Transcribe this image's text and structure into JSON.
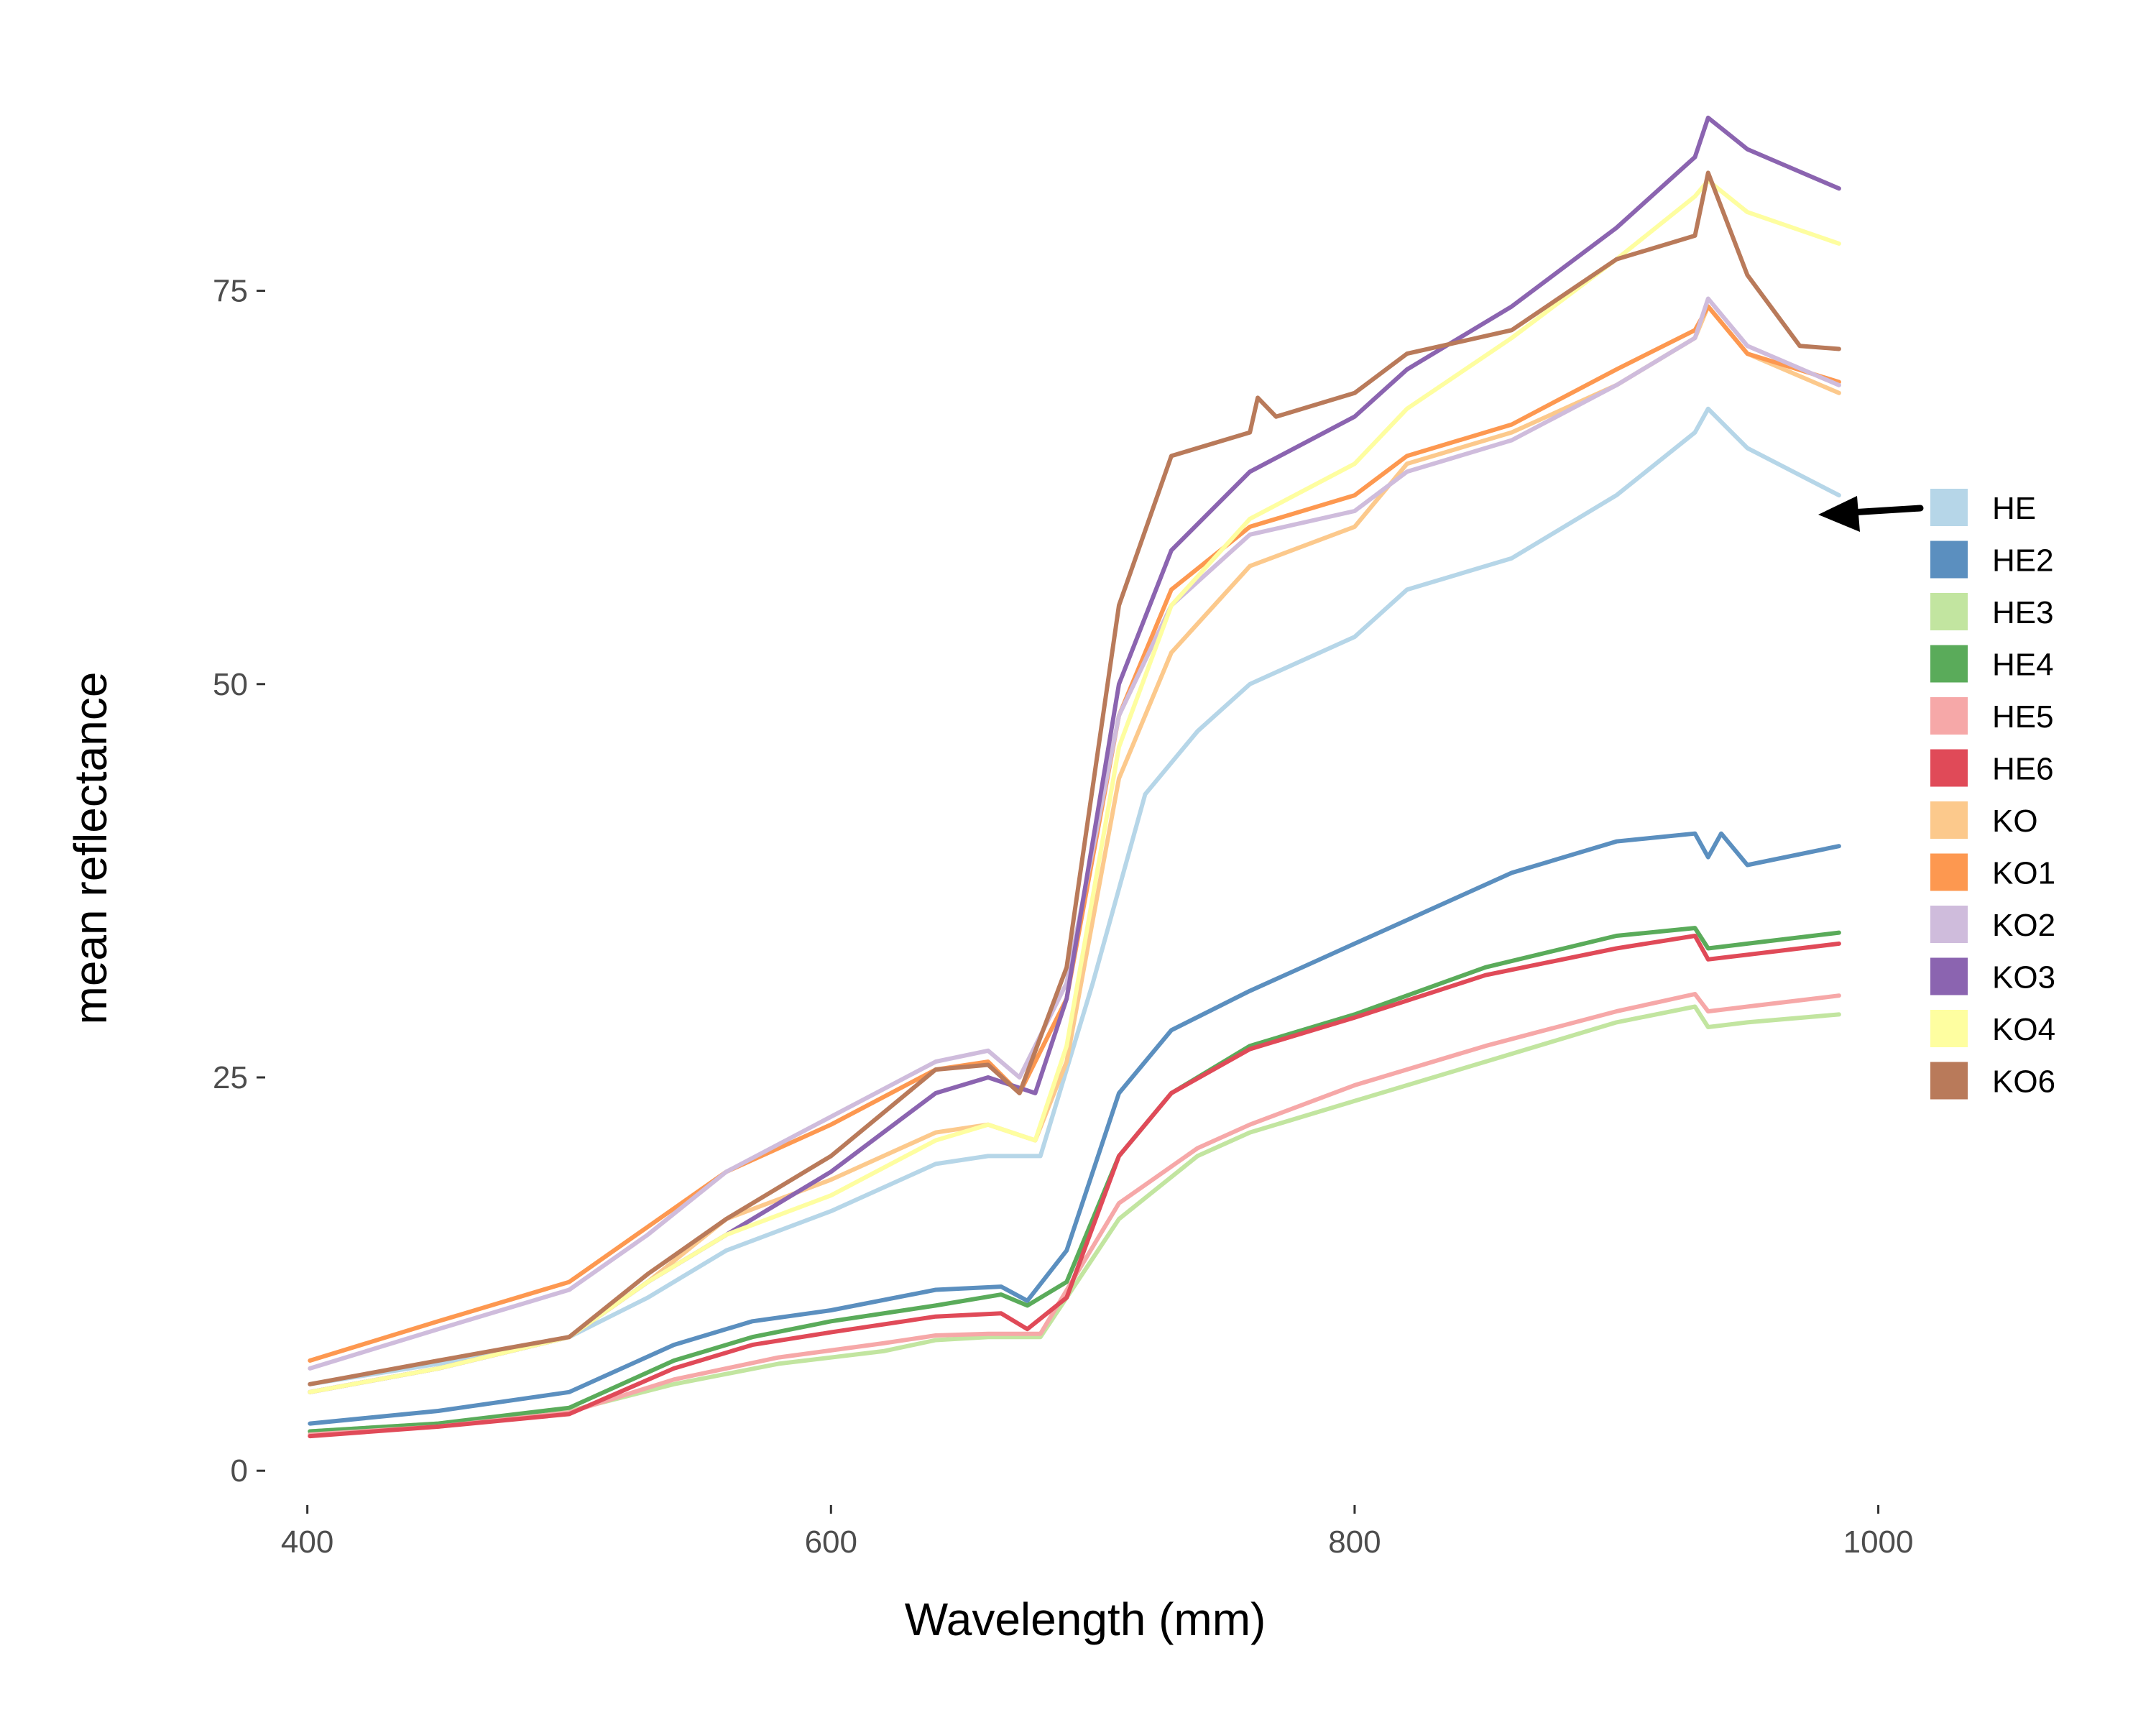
{
  "chart_data": {
    "type": "line",
    "title": "",
    "xlabel": "Wavelength (mm)",
    "ylabel": "mean reflectance",
    "xlim": [
      385,
      1010
    ],
    "ylim": [
      -2,
      88
    ],
    "xticks": [
      400,
      600,
      800,
      1000
    ],
    "yticks": [
      0,
      25,
      50,
      75
    ],
    "grid": false,
    "legend_position": "right",
    "annotation": {
      "type": "arrow",
      "points_to_series": "HE",
      "at": [
        985,
        62
      ]
    },
    "series": [
      {
        "name": "HE",
        "color": "#b6d6e8",
        "points": [
          [
            401,
            5.5
          ],
          [
            450,
            6.8
          ],
          [
            500,
            8.5
          ],
          [
            530,
            11
          ],
          [
            560,
            14
          ],
          [
            600,
            16.5
          ],
          [
            640,
            19.5
          ],
          [
            660,
            20
          ],
          [
            680,
            20
          ],
          [
            700,
            31
          ],
          [
            720,
            43
          ],
          [
            740,
            47
          ],
          [
            760,
            50
          ],
          [
            800,
            53
          ],
          [
            820,
            56
          ],
          [
            860,
            58
          ],
          [
            900,
            62
          ],
          [
            930,
            66
          ],
          [
            935,
            67.5
          ],
          [
            950,
            65
          ],
          [
            985,
            62
          ]
        ]
      },
      {
        "name": "HE2",
        "color": "#5b8fbf",
        "points": [
          [
            401,
            3
          ],
          [
            450,
            3.8
          ],
          [
            500,
            5
          ],
          [
            540,
            8
          ],
          [
            570,
            9.5
          ],
          [
            600,
            10.2
          ],
          [
            640,
            11.5
          ],
          [
            665,
            11.7
          ],
          [
            675,
            10.8
          ],
          [
            690,
            14
          ],
          [
            710,
            24
          ],
          [
            730,
            28
          ],
          [
            760,
            30.5
          ],
          [
            780,
            32
          ],
          [
            800,
            33.5
          ],
          [
            820,
            35
          ],
          [
            860,
            38
          ],
          [
            900,
            40
          ],
          [
            930,
            40.5
          ],
          [
            935,
            39
          ],
          [
            940,
            40.5
          ],
          [
            950,
            38.5
          ],
          [
            985,
            39.7
          ]
        ]
      },
      {
        "name": "HE3",
        "color": "#c2e5a0",
        "points": [
          [
            401,
            2.5
          ],
          [
            450,
            3
          ],
          [
            500,
            3.8
          ],
          [
            540,
            5.5
          ],
          [
            580,
            6.8
          ],
          [
            620,
            7.6
          ],
          [
            640,
            8.3
          ],
          [
            660,
            8.5
          ],
          [
            680,
            8.5
          ],
          [
            710,
            16
          ],
          [
            740,
            20
          ],
          [
            760,
            21.5
          ],
          [
            800,
            23.5
          ],
          [
            850,
            26
          ],
          [
            900,
            28.5
          ],
          [
            930,
            29.5
          ],
          [
            935,
            28.2
          ],
          [
            950,
            28.5
          ],
          [
            985,
            29
          ]
        ]
      },
      {
        "name": "HE4",
        "color": "#5aab5a",
        "points": [
          [
            401,
            2.5
          ],
          [
            450,
            3
          ],
          [
            500,
            4
          ],
          [
            540,
            7
          ],
          [
            570,
            8.5
          ],
          [
            600,
            9.5
          ],
          [
            640,
            10.5
          ],
          [
            665,
            11.2
          ],
          [
            675,
            10.5
          ],
          [
            690,
            12
          ],
          [
            710,
            20
          ],
          [
            730,
            24
          ],
          [
            760,
            27
          ],
          [
            800,
            29
          ],
          [
            850,
            32
          ],
          [
            900,
            34
          ],
          [
            930,
            34.5
          ],
          [
            935,
            33.2
          ],
          [
            950,
            33.5
          ],
          [
            985,
            34.2
          ]
        ]
      },
      {
        "name": "HE5",
        "color": "#f6a8a8",
        "points": [
          [
            401,
            2.3
          ],
          [
            450,
            2.8
          ],
          [
            500,
            3.7
          ],
          [
            540,
            5.8
          ],
          [
            580,
            7.2
          ],
          [
            620,
            8.1
          ],
          [
            640,
            8.6
          ],
          [
            660,
            8.7
          ],
          [
            680,
            8.7
          ],
          [
            710,
            17
          ],
          [
            740,
            20.5
          ],
          [
            760,
            22
          ],
          [
            800,
            24.5
          ],
          [
            850,
            27
          ],
          [
            900,
            29.2
          ],
          [
            930,
            30.3
          ],
          [
            935,
            29.2
          ],
          [
            950,
            29.5
          ],
          [
            985,
            30.2
          ]
        ]
      },
      {
        "name": "HE6",
        "color": "#e04a58",
        "points": [
          [
            401,
            2.2
          ],
          [
            450,
            2.8
          ],
          [
            500,
            3.6
          ],
          [
            540,
            6.5
          ],
          [
            570,
            8
          ],
          [
            600,
            8.8
          ],
          [
            640,
            9.8
          ],
          [
            665,
            10
          ],
          [
            675,
            9
          ],
          [
            690,
            11
          ],
          [
            710,
            20
          ],
          [
            730,
            24
          ],
          [
            760,
            26.8
          ],
          [
            800,
            28.8
          ],
          [
            850,
            31.5
          ],
          [
            900,
            33.2
          ],
          [
            930,
            34
          ],
          [
            935,
            32.5
          ],
          [
            950,
            32.8
          ],
          [
            985,
            33.5
          ]
        ]
      },
      {
        "name": "KO",
        "color": "#fcc98c",
        "points": [
          [
            401,
            5
          ],
          [
            450,
            6.5
          ],
          [
            500,
            8.5
          ],
          [
            530,
            12
          ],
          [
            560,
            16
          ],
          [
            600,
            18.5
          ],
          [
            640,
            21.5
          ],
          [
            660,
            22
          ],
          [
            678,
            21
          ],
          [
            690,
            26
          ],
          [
            710,
            44
          ],
          [
            730,
            52
          ],
          [
            760,
            57.5
          ],
          [
            800,
            60
          ],
          [
            820,
            64
          ],
          [
            860,
            66
          ],
          [
            900,
            69
          ],
          [
            930,
            72
          ],
          [
            935,
            74
          ],
          [
            950,
            71
          ],
          [
            985,
            68.5
          ]
        ]
      },
      {
        "name": "KO1",
        "color": "#fd9850",
        "points": [
          [
            401,
            7
          ],
          [
            450,
            9.5
          ],
          [
            500,
            12
          ],
          [
            530,
            15.5
          ],
          [
            560,
            19
          ],
          [
            600,
            22
          ],
          [
            640,
            25.5
          ],
          [
            660,
            26
          ],
          [
            672,
            24
          ],
          [
            690,
            30
          ],
          [
            710,
            48
          ],
          [
            730,
            56
          ],
          [
            760,
            60
          ],
          [
            800,
            62
          ],
          [
            820,
            64.5
          ],
          [
            860,
            66.5
          ],
          [
            900,
            70
          ],
          [
            930,
            72.5
          ],
          [
            935,
            74
          ],
          [
            950,
            71
          ],
          [
            985,
            69.2
          ]
        ]
      },
      {
        "name": "KO2",
        "color": "#cfbcdc",
        "points": [
          [
            401,
            6.5
          ],
          [
            450,
            9
          ],
          [
            500,
            11.5
          ],
          [
            530,
            15
          ],
          [
            560,
            19
          ],
          [
            600,
            22.5
          ],
          [
            640,
            26
          ],
          [
            660,
            26.7
          ],
          [
            672,
            25
          ],
          [
            690,
            31
          ],
          [
            710,
            48
          ],
          [
            730,
            55
          ],
          [
            760,
            59.5
          ],
          [
            800,
            61
          ],
          [
            820,
            63.5
          ],
          [
            860,
            65.5
          ],
          [
            900,
            69
          ],
          [
            930,
            72
          ],
          [
            935,
            74.5
          ],
          [
            950,
            71.5
          ],
          [
            985,
            69
          ]
        ]
      },
      {
        "name": "KO3",
        "color": "#8b64b0",
        "points": [
          [
            401,
            5
          ],
          [
            450,
            6.5
          ],
          [
            500,
            8.5
          ],
          [
            530,
            12
          ],
          [
            560,
            15
          ],
          [
            600,
            19
          ],
          [
            640,
            24
          ],
          [
            660,
            25
          ],
          [
            678,
            24
          ],
          [
            690,
            30
          ],
          [
            710,
            50
          ],
          [
            730,
            58.5
          ],
          [
            760,
            63.5
          ],
          [
            800,
            67
          ],
          [
            820,
            70
          ],
          [
            860,
            74
          ],
          [
            900,
            79
          ],
          [
            930,
            83.5
          ],
          [
            935,
            86
          ],
          [
            950,
            84
          ],
          [
            985,
            81.5
          ]
        ]
      },
      {
        "name": "KO4",
        "color": "#fefea0",
        "points": [
          [
            401,
            5
          ],
          [
            450,
            6.5
          ],
          [
            500,
            8.5
          ],
          [
            530,
            12
          ],
          [
            560,
            15
          ],
          [
            600,
            17.5
          ],
          [
            640,
            21
          ],
          [
            660,
            22
          ],
          [
            678,
            21
          ],
          [
            690,
            27
          ],
          [
            710,
            46
          ],
          [
            730,
            55
          ],
          [
            760,
            60.5
          ],
          [
            800,
            64
          ],
          [
            820,
            67.5
          ],
          [
            860,
            72
          ],
          [
            900,
            77
          ],
          [
            930,
            81
          ],
          [
            935,
            82
          ],
          [
            950,
            80
          ],
          [
            985,
            78
          ]
        ]
      },
      {
        "name": "KO6",
        "color": "#b97a5a",
        "points": [
          [
            401,
            5.5
          ],
          [
            450,
            7
          ],
          [
            500,
            8.5
          ],
          [
            530,
            12.5
          ],
          [
            560,
            16
          ],
          [
            600,
            20
          ],
          [
            640,
            25.5
          ],
          [
            660,
            25.8
          ],
          [
            672,
            24
          ],
          [
            690,
            32
          ],
          [
            710,
            55
          ],
          [
            730,
            64.5
          ],
          [
            760,
            66
          ],
          [
            763,
            68.2
          ],
          [
            770,
            67
          ],
          [
            800,
            68.5
          ],
          [
            820,
            71
          ],
          [
            860,
            72.5
          ],
          [
            900,
            77
          ],
          [
            930,
            78.5
          ],
          [
            935,
            82.5
          ],
          [
            950,
            76
          ],
          [
            970,
            71.5
          ],
          [
            985,
            71.3
          ]
        ]
      }
    ]
  }
}
